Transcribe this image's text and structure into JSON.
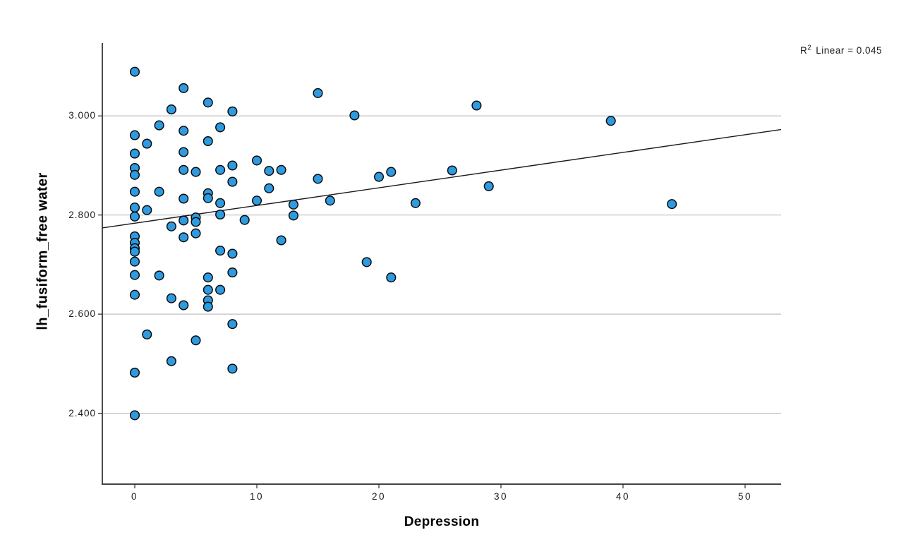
{
  "annotation": {
    "r2_prefix": "R",
    "r2_sup": "2",
    "r2_rest": "Linear = 0.045"
  },
  "chart_data": {
    "type": "scatter",
    "title": "",
    "xlabel": "Depression",
    "ylabel": "lh_fusiform_free water",
    "xlim": [
      -2.66,
      52.95
    ],
    "ylim": [
      2.257,
      3.147
    ],
    "grid": "horizontal-only",
    "legend": "none",
    "x_ticks": [
      {
        "value": 0,
        "label": "0"
      },
      {
        "value": 10,
        "label": "10"
      },
      {
        "value": 20,
        "label": "20"
      },
      {
        "value": 30,
        "label": "30"
      },
      {
        "value": 40,
        "label": "40"
      },
      {
        "value": 50,
        "label": "50"
      }
    ],
    "y_ticks": [
      {
        "value": 2.4,
        "label": "2.400"
      },
      {
        "value": 2.6,
        "label": "2.600"
      },
      {
        "value": 2.8,
        "label": "2.800"
      },
      {
        "value": 3.0,
        "label": "3.000"
      }
    ],
    "regression": {
      "slope": 0.00357,
      "intercept": 2.7835,
      "r_squared": 0.045
    },
    "colors": {
      "point_fill": "#2E9BE0",
      "point_stroke": "#0a0a0a",
      "line": "#1a1a1a",
      "grid": "#bfbfbf",
      "axis": "#2a2a2a",
      "background": "#ffffff"
    },
    "points": [
      [
        0,
        3.089
      ],
      [
        0,
        2.961
      ],
      [
        0,
        2.924
      ],
      [
        0,
        2.895
      ],
      [
        0,
        2.881
      ],
      [
        0,
        2.847
      ],
      [
        0,
        2.815
      ],
      [
        0,
        2.797
      ],
      [
        0,
        2.757
      ],
      [
        0,
        2.744
      ],
      [
        0,
        2.733
      ],
      [
        0,
        2.726
      ],
      [
        0,
        2.706
      ],
      [
        0,
        2.679
      ],
      [
        0,
        2.639
      ],
      [
        0,
        2.482
      ],
      [
        0,
        2.396
      ],
      [
        1,
        2.944
      ],
      [
        1,
        2.81
      ],
      [
        1,
        2.559
      ],
      [
        2,
        2.981
      ],
      [
        2,
        2.847
      ],
      [
        2,
        2.678
      ],
      [
        3,
        3.013
      ],
      [
        3,
        2.777
      ],
      [
        3,
        2.632
      ],
      [
        3,
        2.505
      ],
      [
        4,
        3.056
      ],
      [
        4,
        2.97
      ],
      [
        4,
        2.927
      ],
      [
        4,
        2.891
      ],
      [
        4,
        2.833
      ],
      [
        4,
        2.789
      ],
      [
        4,
        2.755
      ],
      [
        4,
        2.618
      ],
      [
        5,
        2.887
      ],
      [
        5,
        2.795
      ],
      [
        5,
        2.786
      ],
      [
        5,
        2.763
      ],
      [
        5,
        2.547
      ],
      [
        6,
        3.027
      ],
      [
        6,
        2.949
      ],
      [
        6,
        2.844
      ],
      [
        6,
        2.834
      ],
      [
        6,
        2.674
      ],
      [
        6,
        2.649
      ],
      [
        6,
        2.628
      ],
      [
        6,
        2.615
      ],
      [
        7,
        2.977
      ],
      [
        7,
        2.891
      ],
      [
        7,
        2.824
      ],
      [
        7,
        2.801
      ],
      [
        7,
        2.728
      ],
      [
        7,
        2.649
      ],
      [
        8,
        3.009
      ],
      [
        8,
        2.9
      ],
      [
        8,
        2.867
      ],
      [
        8,
        2.722
      ],
      [
        8,
        2.684
      ],
      [
        8,
        2.58
      ],
      [
        8,
        2.49
      ],
      [
        9,
        2.79
      ],
      [
        10,
        2.91
      ],
      [
        10,
        2.829
      ],
      [
        11,
        2.889
      ],
      [
        11,
        2.854
      ],
      [
        12,
        2.891
      ],
      [
        12,
        2.749
      ],
      [
        13,
        2.821
      ],
      [
        13,
        2.799
      ],
      [
        15,
        3.046
      ],
      [
        15,
        2.873
      ],
      [
        16,
        2.829
      ],
      [
        18,
        3.001
      ],
      [
        19,
        2.705
      ],
      [
        20,
        2.877
      ],
      [
        21,
        2.887
      ],
      [
        21,
        2.674
      ],
      [
        23,
        2.824
      ],
      [
        26,
        2.89
      ],
      [
        28,
        3.021
      ],
      [
        29,
        2.858
      ],
      [
        39,
        2.99
      ],
      [
        44,
        2.822
      ]
    ]
  }
}
